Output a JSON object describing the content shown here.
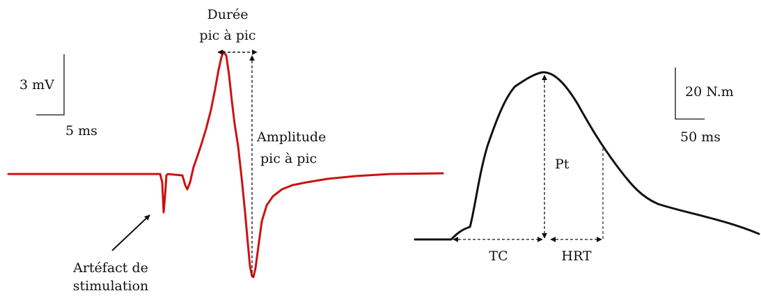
{
  "colors": {
    "emg_trace": "#cc1111",
    "torque_trace": "#111111",
    "annotation": "#111111"
  },
  "left_panel": {
    "scale_voltage": "3 mV",
    "scale_time": "5 ms",
    "label_duration_line1": "Durée",
    "label_duration_line2": "pic à pic",
    "label_amplitude_line1": "Amplitude",
    "label_amplitude_line2": "pic à pic",
    "label_artifact_line1": "Artéfact de",
    "label_artifact_line2": "stimulation"
  },
  "right_panel": {
    "scale_torque": "20 N.m",
    "scale_time": "50 ms",
    "label_pt": "Pt",
    "label_tc": "TC",
    "label_hrt": "HRT"
  }
}
